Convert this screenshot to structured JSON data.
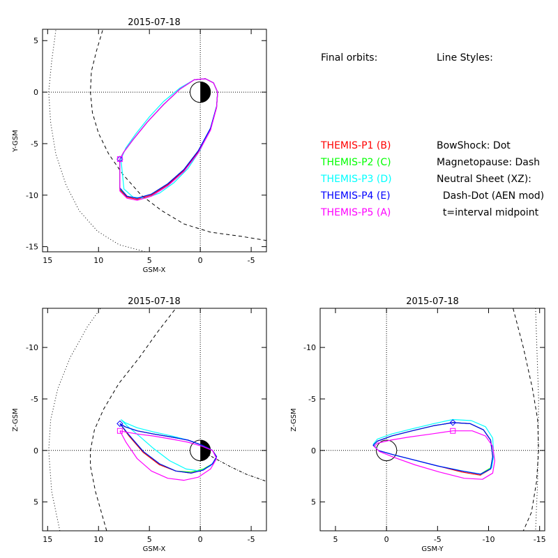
{
  "legend": {
    "orbits_title": "Final orbits:",
    "orbit_entries": [
      {
        "label": "THEMIS-P1 (B)",
        "color": "#ff0000"
      },
      {
        "label": "THEMIS-P2 (C)",
        "color": "#00ff00"
      },
      {
        "label": "THEMIS-P3 (D)",
        "color": "#00ffff"
      },
      {
        "label": "THEMIS-P4 (E)",
        "color": "#0000ff"
      },
      {
        "label": "THEMIS-P5 (A)",
        "color": "#ff00ff"
      }
    ],
    "styles_title": "Line Styles:",
    "style_entries": [
      "BowShock: Dot",
      "Magnetopause: Dash",
      "Neutral Sheet (XZ):",
      "  Dash-Dot (AEN mod)",
      "  t=interval midpoint"
    ]
  },
  "chart_data": [
    {
      "id": "xy",
      "type": "line",
      "title": "2015-07-18",
      "xlabel": "GSM-X",
      "ylabel": "Y-GSM",
      "xlim": [
        15.5,
        -6.5
      ],
      "ylim": [
        6.1,
        -15.5
      ],
      "xticks": [
        15,
        10,
        5,
        0,
        -5
      ],
      "yticks": [
        5,
        0,
        -5,
        -10,
        -15
      ],
      "earth": {
        "center": [
          0,
          0
        ],
        "radius": 1,
        "night_side": "negative-x"
      },
      "bow_shock": {
        "x": [
          14.2,
          14.6,
          14.9,
          14.7,
          14.2,
          13.2,
          11.9,
          10.1,
          8.0,
          5.4
        ],
        "y": [
          6.0,
          3.0,
          0.0,
          -3.0,
          -6.0,
          -9.0,
          -11.5,
          -13.5,
          -14.8,
          -15.5
        ]
      },
      "magnetopause": {
        "x": [
          9.6,
          10.2,
          10.7,
          10.8,
          10.6,
          10.0,
          9.0,
          7.6,
          5.8,
          3.8,
          1.6,
          -1.0,
          -4.0,
          -6.5
        ],
        "y": [
          6.0,
          4.0,
          2.0,
          0.0,
          -2.0,
          -4.0,
          -6.0,
          -8.0,
          -10.0,
          -11.5,
          -12.8,
          -13.6,
          -14.0,
          -14.4
        ]
      },
      "markers": [
        {
          "name": "THEMIS-P4 (E)",
          "shape": "diamond",
          "x": 7.9,
          "y": -6.5
        },
        {
          "name": "THEMIS-P5 (A)",
          "shape": "square",
          "x": 7.9,
          "y": -6.5
        }
      ],
      "series": [
        {
          "name": "THEMIS-P1 (B)",
          "color": "#ff0000",
          "x": [
            7.9,
            7.9,
            7.2,
            6.2,
            4.8,
            3.2,
            1.6,
            0.2,
            -1.0,
            -1.6,
            -1.7,
            -1.3,
            -0.5,
            0.6,
            2.0,
            3.6,
            5.2,
            6.6,
            7.5,
            7.9
          ],
          "y": [
            -6.5,
            -9.5,
            -10.2,
            -10.4,
            -10.0,
            -9.0,
            -7.6,
            -5.8,
            -3.6,
            -1.5,
            0.0,
            0.9,
            1.3,
            1.2,
            0.3,
            -1.2,
            -2.9,
            -4.6,
            -5.8,
            -6.5
          ]
        },
        {
          "name": "THEMIS-P2 (C)",
          "color": "#00ff00",
          "x": [
            7.9,
            7.9,
            7.2,
            6.2,
            4.8,
            3.2,
            1.6,
            0.2,
            -1.0,
            -1.6,
            -1.7,
            -1.3,
            -0.5,
            0.6,
            2.0,
            3.6,
            5.2,
            6.6,
            7.5,
            7.9
          ],
          "y": [
            -6.5,
            -9.4,
            -10.1,
            -10.3,
            -9.9,
            -8.9,
            -7.5,
            -5.7,
            -3.5,
            -1.4,
            0.0,
            0.9,
            1.3,
            1.2,
            0.3,
            -1.2,
            -2.9,
            -4.6,
            -5.8,
            -6.5
          ]
        },
        {
          "name": "THEMIS-P3 (D)",
          "color": "#00ffff",
          "x": [
            7.8,
            7.5,
            6.6,
            5.4,
            4.0,
            2.6,
            1.2,
            0.0,
            -1.0,
            -1.6,
            -1.7,
            -1.3,
            -0.5,
            0.6,
            2.0,
            3.6,
            5.0,
            6.3,
            7.3,
            7.8
          ],
          "y": [
            -6.5,
            -9.4,
            -10.2,
            -10.3,
            -9.8,
            -8.8,
            -7.4,
            -5.6,
            -3.5,
            -1.4,
            0.0,
            0.9,
            1.3,
            1.2,
            0.4,
            -0.9,
            -2.4,
            -4.0,
            -5.4,
            -6.5
          ]
        },
        {
          "name": "THEMIS-P4 (E)",
          "color": "#0000ff",
          "x": [
            7.9,
            7.9,
            7.2,
            6.2,
            4.8,
            3.2,
            1.6,
            0.2,
            -1.0,
            -1.6,
            -1.7,
            -1.3,
            -0.5,
            0.6,
            2.0,
            3.6,
            5.2,
            6.6,
            7.5,
            7.9
          ],
          "y": [
            -6.5,
            -9.3,
            -10.1,
            -10.3,
            -9.9,
            -8.9,
            -7.5,
            -5.7,
            -3.5,
            -1.4,
            0.0,
            0.9,
            1.3,
            1.2,
            0.3,
            -1.2,
            -2.9,
            -4.6,
            -5.8,
            -6.5
          ]
        },
        {
          "name": "THEMIS-P5 (A)",
          "color": "#ff00ff",
          "x": [
            7.9,
            7.9,
            7.2,
            6.2,
            4.8,
            3.2,
            1.6,
            0.2,
            -1.0,
            -1.6,
            -1.7,
            -1.3,
            -0.5,
            0.6,
            2.0,
            3.6,
            5.2,
            6.6,
            7.5,
            7.9
          ],
          "y": [
            -6.5,
            -9.6,
            -10.3,
            -10.5,
            -10.1,
            -9.1,
            -7.7,
            -5.9,
            -3.7,
            -1.5,
            0.0,
            0.9,
            1.3,
            1.2,
            0.3,
            -1.2,
            -2.9,
            -4.6,
            -5.8,
            -6.5
          ]
        }
      ]
    },
    {
      "id": "xz",
      "type": "line",
      "title": "2015-07-18",
      "xlabel": "GSM-X",
      "ylabel": "Z-GSM",
      "xlim": [
        15.5,
        -6.5
      ],
      "ylim": [
        -13.8,
        7.8
      ],
      "xticks": [
        15,
        10,
        5,
        0,
        -5
      ],
      "yticks": [
        5,
        0,
        -5,
        -10
      ],
      "earth": {
        "center": [
          0,
          0
        ],
        "radius": 1,
        "night_side": "negative-x"
      },
      "bow_shock": {
        "x": [
          13.8,
          14.6,
          14.9,
          14.7,
          14.0,
          12.8,
          11.1,
          9.8
        ],
        "y": [
          7.8,
          4.0,
          0.0,
          -3.0,
          -6.0,
          -9.0,
          -12.0,
          -13.8
        ]
      },
      "magnetopause": {
        "x": [
          9.2,
          10.3,
          10.8,
          10.8,
          10.4,
          9.5,
          8.0,
          6.0,
          4.2,
          2.4
        ],
        "y": [
          7.8,
          4.0,
          1.5,
          0.0,
          -2.0,
          -4.0,
          -6.5,
          -9.0,
          -11.5,
          -13.8
        ]
      },
      "neutral_sheet": {
        "x": [
          0,
          -1.5,
          -3.0,
          -4.5,
          -6.5
        ],
        "y": [
          0,
          0.8,
          1.6,
          2.3,
          3.0
        ]
      },
      "markers": [
        {
          "name": "THEMIS-P4 (E)",
          "shape": "diamond",
          "x": 7.9,
          "y": -2.6
        },
        {
          "name": "THEMIS-P5 (A)",
          "shape": "square",
          "x": 7.9,
          "y": -1.9
        }
      ],
      "series": [
        {
          "name": "THEMIS-P1 (B)",
          "color": "#ff0000",
          "x": [
            7.9,
            7.0,
            5.6,
            4.0,
            2.4,
            0.9,
            -0.3,
            -1.2,
            -1.6,
            -1.2,
            -0.2,
            1.2,
            2.8,
            4.6,
            6.2,
            7.4,
            7.9
          ],
          "y": [
            -2.6,
            -1.4,
            0.2,
            1.4,
            2.0,
            2.2,
            1.9,
            1.3,
            0.6,
            0.0,
            -0.5,
            -1.0,
            -1.3,
            -1.6,
            -1.9,
            -2.3,
            -2.6
          ]
        },
        {
          "name": "THEMIS-P2 (C)",
          "color": "#00ff00",
          "x": [
            7.9,
            7.0,
            5.6,
            4.0,
            2.4,
            0.9,
            -0.3,
            -1.2,
            -1.6,
            -1.2,
            -0.2,
            1.2,
            2.8,
            4.6,
            6.2,
            7.4,
            7.9
          ],
          "y": [
            -2.6,
            -1.5,
            0.1,
            1.3,
            2.0,
            2.1,
            1.8,
            1.3,
            0.6,
            0.0,
            -0.5,
            -1.0,
            -1.3,
            -1.6,
            -1.9,
            -2.3,
            -2.6
          ]
        },
        {
          "name": "THEMIS-P3 (D)",
          "color": "#00ffff",
          "x": [
            7.8,
            7.2,
            6.0,
            4.6,
            3.0,
            1.4,
            0.0,
            -1.0,
            -1.6,
            -1.2,
            -0.2,
            1.2,
            2.8,
            4.6,
            6.2,
            7.4,
            7.8
          ],
          "y": [
            -3.0,
            -2.4,
            -1.4,
            -0.2,
            1.0,
            1.8,
            2.0,
            1.5,
            0.7,
            0.0,
            -0.5,
            -1.0,
            -1.4,
            -1.8,
            -2.2,
            -2.7,
            -3.0
          ]
        },
        {
          "name": "THEMIS-P4 (E)",
          "color": "#0000ff",
          "x": [
            7.9,
            7.0,
            5.6,
            4.0,
            2.4,
            0.9,
            -0.3,
            -1.2,
            -1.6,
            -1.2,
            -0.2,
            1.2,
            2.8,
            4.6,
            6.2,
            7.4,
            7.9
          ],
          "y": [
            -2.6,
            -1.5,
            0.1,
            1.3,
            2.0,
            2.2,
            1.9,
            1.3,
            0.6,
            0.0,
            -0.5,
            -1.0,
            -1.3,
            -1.6,
            -1.9,
            -2.3,
            -2.6
          ]
        },
        {
          "name": "THEMIS-P5 (A)",
          "color": "#ff00ff",
          "x": [
            7.9,
            7.3,
            6.2,
            4.8,
            3.2,
            1.6,
            0.2,
            -1.0,
            -1.6,
            -1.2,
            -0.2,
            1.2,
            2.8,
            4.6,
            6.2,
            7.4,
            7.9
          ],
          "y": [
            -1.9,
            -0.8,
            0.8,
            2.0,
            2.7,
            2.9,
            2.6,
            1.8,
            0.8,
            0.0,
            -0.4,
            -0.8,
            -1.1,
            -1.4,
            -1.6,
            -1.8,
            -1.9
          ]
        }
      ]
    },
    {
      "id": "yz",
      "type": "line",
      "title": "2015-07-18",
      "xlabel": "GSM-Y",
      "ylabel": "Z-GSM",
      "xlim": [
        6.5,
        -15.5
      ],
      "ylim": [
        -13.8,
        7.8
      ],
      "xticks": [
        5,
        0,
        -5,
        -10,
        -15
      ],
      "yticks": [
        5,
        0,
        -5,
        -10
      ],
      "earth": {
        "center": [
          0,
          0
        ],
        "radius": 1,
        "night_side": "none"
      },
      "bow_shock": {
        "x": [
          -14.6,
          -14.9,
          -14.8,
          -14.6
        ],
        "y": [
          -13.8,
          -5.0,
          3.0,
          7.8
        ]
      },
      "magnetopause": {
        "x": [
          -12.4,
          -13.4,
          -14.3,
          -14.8,
          -14.9,
          -14.7,
          -14.2,
          -13.4
        ],
        "y": [
          -13.8,
          -10.0,
          -6.0,
          -3.0,
          0.0,
          3.0,
          6.0,
          7.8
        ]
      },
      "markers": [
        {
          "name": "THEMIS-P4 (E)",
          "shape": "diamond",
          "x": -6.5,
          "y": -2.7
        },
        {
          "name": "THEMIS-P5 (A)",
          "shape": "square",
          "x": -6.5,
          "y": -1.9
        }
      ],
      "series": [
        {
          "name": "THEMIS-P1 (B)",
          "color": "#ff0000",
          "x": [
            -6.5,
            -8.2,
            -9.5,
            -10.2,
            -10.4,
            -10.2,
            -9.2,
            -7.4,
            -5.0,
            -2.6,
            -0.6,
            0.8,
            1.3,
            0.9,
            -0.5,
            -2.5,
            -4.6,
            -6.5
          ],
          "y": [
            -2.7,
            -2.6,
            -2.0,
            -1.0,
            0.6,
            1.8,
            2.4,
            2.1,
            1.5,
            0.9,
            0.4,
            0.0,
            -0.5,
            -0.9,
            -1.4,
            -1.9,
            -2.4,
            -2.7
          ]
        },
        {
          "name": "THEMIS-P2 (C)",
          "color": "#00ff00",
          "x": [
            -6.5,
            -8.2,
            -9.5,
            -10.2,
            -10.4,
            -10.2,
            -9.2,
            -7.4,
            -5.0,
            -2.6,
            -0.6,
            0.8,
            1.3,
            0.9,
            -0.5,
            -2.5,
            -4.6,
            -6.5
          ],
          "y": [
            -2.7,
            -2.6,
            -2.0,
            -1.0,
            0.6,
            1.7,
            2.3,
            2.0,
            1.5,
            0.9,
            0.4,
            0.0,
            -0.5,
            -0.9,
            -1.4,
            -1.9,
            -2.4,
            -2.7
          ]
        },
        {
          "name": "THEMIS-P3 (D)",
          "color": "#00ffff",
          "x": [
            -6.5,
            -8.3,
            -9.7,
            -10.4,
            -10.5,
            -10.3,
            -9.3,
            -7.5,
            -5.0,
            -2.6,
            -0.6,
            0.8,
            1.3,
            0.9,
            -0.5,
            -2.5,
            -4.6,
            -6.5
          ],
          "y": [
            -3.0,
            -2.9,
            -2.3,
            -1.2,
            0.5,
            1.7,
            2.3,
            2.0,
            1.5,
            0.9,
            0.4,
            0.0,
            -0.6,
            -1.1,
            -1.6,
            -2.1,
            -2.6,
            -3.0
          ]
        },
        {
          "name": "THEMIS-P4 (E)",
          "color": "#0000ff",
          "x": [
            -6.5,
            -8.2,
            -9.5,
            -10.2,
            -10.4,
            -10.2,
            -9.2,
            -7.4,
            -5.0,
            -2.6,
            -0.6,
            0.8,
            1.3,
            0.9,
            -0.5,
            -2.5,
            -4.6,
            -6.5
          ],
          "y": [
            -2.7,
            -2.6,
            -2.0,
            -1.0,
            0.6,
            1.8,
            2.3,
            2.0,
            1.5,
            0.9,
            0.4,
            0.0,
            -0.5,
            -0.9,
            -1.4,
            -1.9,
            -2.4,
            -2.7
          ]
        },
        {
          "name": "THEMIS-P5 (A)",
          "color": "#ff00ff",
          "x": [
            -6.5,
            -8.4,
            -9.7,
            -10.4,
            -10.6,
            -10.4,
            -9.4,
            -7.6,
            -5.2,
            -2.8,
            -0.8,
            0.7,
            1.2,
            0.9,
            -0.4,
            -2.2,
            -4.4,
            -6.5
          ],
          "y": [
            -1.9,
            -1.9,
            -1.4,
            -0.4,
            1.0,
            2.2,
            2.8,
            2.7,
            2.1,
            1.4,
            0.7,
            0.1,
            -0.4,
            -0.7,
            -1.0,
            -1.3,
            -1.6,
            -1.9
          ]
        }
      ]
    }
  ]
}
